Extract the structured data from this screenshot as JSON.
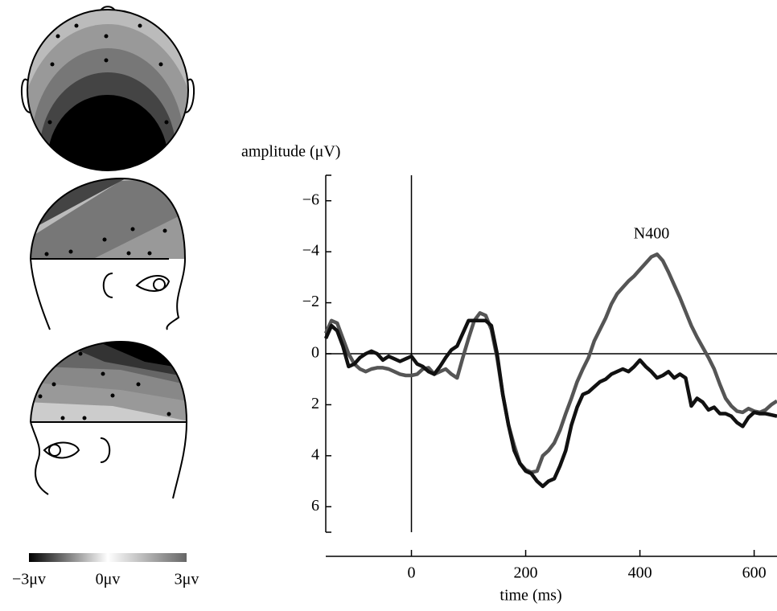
{
  "chart_data": {
    "type": "line",
    "y_label": "amplitude (μV)",
    "x_label": "time (ms)",
    "annotation": "N400",
    "xlim": [
      -150,
      640
    ],
    "ylim": [
      7,
      -7
    ],
    "xticks": [
      0,
      200,
      400,
      600
    ],
    "yticks": [
      {
        "value": -6,
        "label": "−6"
      },
      {
        "value": -4,
        "label": "−4"
      },
      {
        "value": -2,
        "label": "−2"
      },
      0,
      2,
      4,
      6
    ],
    "x": [
      -150,
      -140,
      -130,
      -120,
      -110,
      -100,
      -90,
      -80,
      -70,
      -60,
      -50,
      -40,
      -30,
      -20,
      -10,
      0,
      10,
      20,
      30,
      40,
      50,
      60,
      70,
      80,
      90,
      100,
      110,
      120,
      130,
      140,
      150,
      160,
      170,
      180,
      190,
      200,
      210,
      220,
      230,
      240,
      250,
      260,
      270,
      280,
      290,
      300,
      310,
      320,
      330,
      340,
      350,
      360,
      370,
      380,
      390,
      400,
      410,
      420,
      430,
      440,
      450,
      460,
      470,
      480,
      490,
      500,
      510,
      520,
      530,
      540,
      550,
      560,
      570,
      580,
      590,
      600,
      610,
      620,
      630,
      640
    ],
    "series": [
      {
        "color": "#111111",
        "values": [
          -0.6,
          -1.1,
          -0.9,
          -0.3,
          0.5,
          0.4,
          0.15,
          0,
          -0.1,
          0,
          0.25,
          0.1,
          0.2,
          0.3,
          0.2,
          0.1,
          0.4,
          0.5,
          0.7,
          0.8,
          0.5,
          0.15,
          -0.15,
          -0.3,
          -0.8,
          -1.3,
          -1.3,
          -1.3,
          -1.3,
          -1.1,
          0,
          1.6,
          2.8,
          3.8,
          4.3,
          4.6,
          4.7,
          5.0,
          5.2,
          5.0,
          4.9,
          4.4,
          3.8,
          2.8,
          2.1,
          1.6,
          1.5,
          1.3,
          1.1,
          1.0,
          0.8,
          0.7,
          0.6,
          0.7,
          0.5,
          0.25,
          0.5,
          0.7,
          0.95,
          0.85,
          0.7,
          0.95,
          0.8,
          0.95,
          2.05,
          1.75,
          1.9,
          2.2,
          2.1,
          2.35,
          2.35,
          2.45,
          2.7,
          2.85,
          2.5,
          2.3,
          2.35,
          2.35,
          2.4,
          2.45
        ]
      },
      {
        "color": "#555555",
        "values": [
          -0.8,
          -1.3,
          -1.2,
          -0.6,
          0,
          0.4,
          0.6,
          0.7,
          0.6,
          0.55,
          0.55,
          0.6,
          0.7,
          0.8,
          0.85,
          0.85,
          0.8,
          0.6,
          0.55,
          0.8,
          0.7,
          0.6,
          0.8,
          0.95,
          0.15,
          -0.6,
          -1.3,
          -1.6,
          -1.5,
          -0.95,
          0.15,
          1.6,
          2.8,
          3.6,
          4.3,
          4.55,
          4.65,
          4.6,
          4.0,
          3.8,
          3.5,
          3.0,
          2.35,
          1.75,
          1.1,
          0.6,
          0.15,
          -0.5,
          -0.95,
          -1.4,
          -1.95,
          -2.35,
          -2.6,
          -2.85,
          -3.05,
          -3.3,
          -3.55,
          -3.8,
          -3.9,
          -3.65,
          -3.2,
          -2.7,
          -2.2,
          -1.65,
          -1.1,
          -0.65,
          -0.25,
          0.15,
          0.6,
          1.2,
          1.75,
          2.05,
          2.25,
          2.3,
          2.15,
          2.25,
          2.3,
          2.2,
          2.0,
          1.85
        ]
      }
    ]
  },
  "colorbar": {
    "labels": [
      "−3μv",
      "0μv",
      "3μv"
    ]
  }
}
